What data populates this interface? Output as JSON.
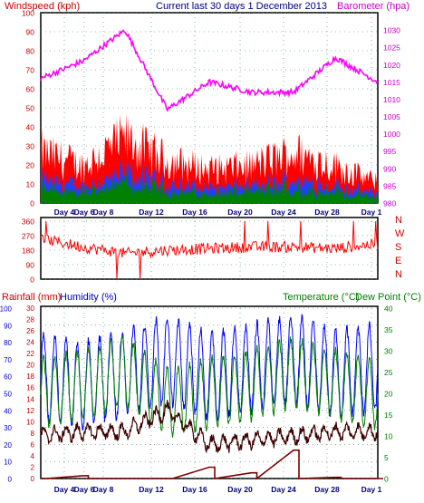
{
  "title": "Current last 30 days 1 December 2013",
  "colors": {
    "frame": "#000000",
    "grid": "#2e8b57",
    "wind_gust": "#ff0000",
    "wind_avg": "#1f3fff",
    "wind_low": "#008000",
    "barometer": "#ff00ff",
    "direction": "#ff0000",
    "rainfall": "#7f0000",
    "humidity": "#0000ff",
    "temperature": "#008000",
    "dewpoint": "#400000",
    "label_red": "#cc0000",
    "label_green": "#008000",
    "label_navy": "#000080",
    "label_magenta": "#cc00cc",
    "label_blue": "#0000cc"
  },
  "x_ticks": [
    "Day 4",
    "Day 6",
    "Day 8",
    "Day 12",
    "Day 16",
    "Day 20",
    "Day 24",
    "Day 28",
    "Day 1"
  ],
  "chart_data": [
    {
      "type": "area",
      "ylabel": "Windspeed (kph)",
      "y2label": "Barometer (hpa)",
      "ylim": [
        0,
        100
      ],
      "y2lim": [
        980,
        1035
      ],
      "yticks": [
        "0",
        "10",
        "20",
        "30",
        "40",
        "50",
        "60",
        "70",
        "80",
        "90",
        "100"
      ],
      "y2ticks": [
        "980",
        "985",
        "990",
        "995",
        "1000",
        "1005",
        "1010",
        "1015",
        "1020",
        "1025",
        "1030"
      ],
      "x": [
        "Day 4",
        "Day 6",
        "Day 8",
        "Day 12",
        "Day 16",
        "Day 20",
        "Day 24",
        "Day 28",
        "Day 1"
      ],
      "series": [
        {
          "name": "Windspeed (kph)",
          "values": [
            30,
            22,
            38,
            25,
            20,
            22,
            30,
            22,
            12
          ]
        },
        {
          "name": "Barometer (hpa)",
          "values": [
            1016,
            1021,
            1030,
            1007,
            1015,
            1012,
            1012,
            1022,
            1015
          ]
        }
      ],
      "grid": true
    },
    {
      "type": "scatter",
      "ylabel": "Wind direction",
      "ylim": [
        0,
        360
      ],
      "yticks": [
        "0",
        "90",
        "180",
        "270",
        "360"
      ],
      "compass_labels": [
        "N",
        "W",
        "S",
        "E",
        "N"
      ],
      "x": [
        "Day 4",
        "Day 6",
        "Day 8",
        "Day 12",
        "Day 16",
        "Day 20",
        "Day 24",
        "Day 28",
        "Day 1"
      ],
      "series": [
        {
          "name": "Wind direction",
          "values": [
            250,
            200,
            160,
            180,
            190,
            200,
            200,
            190,
            220
          ]
        }
      ],
      "grid": true
    },
    {
      "type": "line",
      "ylabel_left1": "Rainfall (mm)",
      "ylabel_left2": "Humidity (%)",
      "ylabel_right1": "Temperature (°C)",
      "ylabel_right2": "Dew Point (°C)",
      "humidity_ticks": [
        "0",
        "10",
        "20",
        "30",
        "40",
        "50",
        "60",
        "70",
        "80",
        "90",
        "100"
      ],
      "rain_ticks": [
        "0",
        "2",
        "4",
        "6",
        "8",
        "10",
        "12",
        "14",
        "16",
        "18",
        "20",
        "22",
        "24",
        "26",
        "28",
        "30"
      ],
      "temp_ticks": [
        "0",
        "5",
        "10",
        "15",
        "20",
        "25",
        "30",
        "35",
        "40"
      ],
      "humidity_lim": [
        0,
        100
      ],
      "rain_lim": [
        0,
        30
      ],
      "temp_lim": [
        0,
        40
      ],
      "x": [
        "Day 4",
        "Day 6",
        "Day 8",
        "Day 12",
        "Day 16",
        "Day 20",
        "Day 24",
        "Day 28",
        "Day 1"
      ],
      "series": [
        {
          "name": "Humidity (%)",
          "values": [
            60,
            55,
            62,
            70,
            60,
            65,
            70,
            62,
            65
          ]
        },
        {
          "name": "Temperature (°C)",
          "values": [
            20,
            22,
            25,
            18,
            20,
            22,
            25,
            22,
            20
          ]
        },
        {
          "name": "Dew Point (°C)",
          "values": [
            10,
            11,
            11,
            16,
            8,
            9,
            10,
            11,
            11
          ]
        },
        {
          "name": "Rainfall (mm)",
          "values": [
            0,
            0.5,
            0,
            0,
            2,
            1,
            5,
            0.2,
            0
          ]
        }
      ],
      "grid": true
    }
  ]
}
